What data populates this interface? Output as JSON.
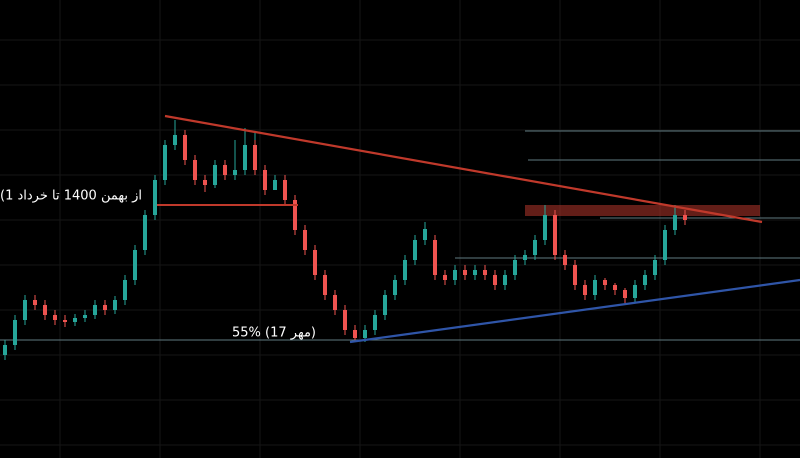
{
  "annotations": {
    "range_label": "(از بهمن 1400 تا خرداد 1",
    "low_label": "55% (17 مهر)"
  }
}
